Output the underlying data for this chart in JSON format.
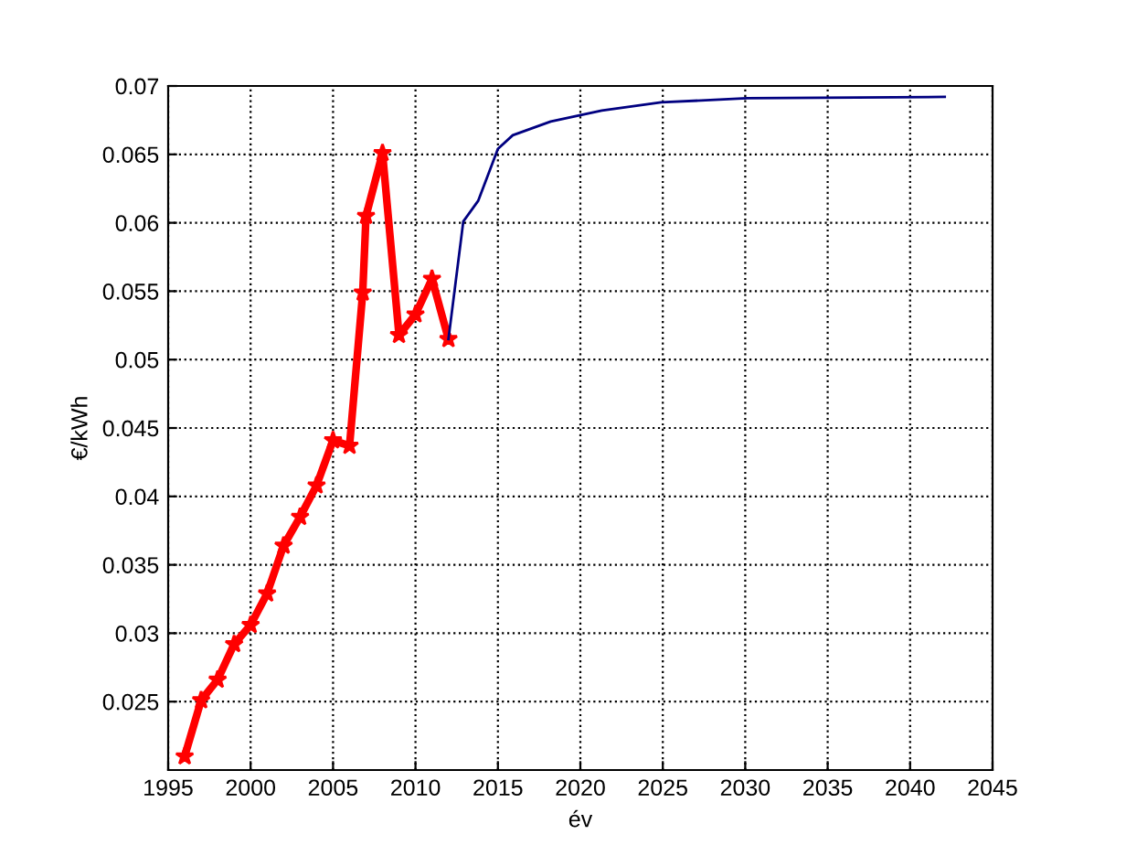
{
  "chart_data": {
    "type": "line",
    "xlabel": "év",
    "ylabel": "€/kWh",
    "series": [
      {
        "color": "#ff0000",
        "marker": "star",
        "x": [
          1996,
          1997,
          1998,
          1999,
          2000,
          2001,
          2002,
          2003,
          2004,
          2005,
          2006,
          2006.8,
          2007,
          2008,
          2009,
          2010,
          2011,
          2012
        ],
        "values": [
          0.021,
          0.0251,
          0.0266,
          0.0292,
          0.0306,
          0.0329,
          0.0364,
          0.0385,
          0.0408,
          0.0441,
          0.0437,
          0.0549,
          0.0605,
          0.0651,
          0.0518,
          0.0533,
          0.0559,
          0.0515
        ]
      },
      {
        "color": "#000080",
        "marker": "none",
        "x": [
          2012,
          2012.9,
          2013.8,
          2015,
          2015.9,
          2018.2,
          2021.3,
          2024.9,
          2030.1,
          2042.1
        ],
        "values": [
          0.0515,
          0.0601,
          0.0616,
          0.0654,
          0.0664,
          0.0674,
          0.0682,
          0.0688,
          0.0691,
          0.0692
        ]
      }
    ],
    "xlim": [
      1995,
      2045
    ],
    "xticks": [
      1995,
      2000,
      2005,
      2010,
      2015,
      2020,
      2025,
      2030,
      2035,
      2040,
      2045
    ],
    "ylim": [
      0.02,
      0.07
    ],
    "yticks": [
      0.025,
      0.03,
      0.035,
      0.04,
      0.045,
      0.05,
      0.055,
      0.06,
      0.065,
      0.07
    ],
    "grid": true,
    "line_style": "solid"
  }
}
